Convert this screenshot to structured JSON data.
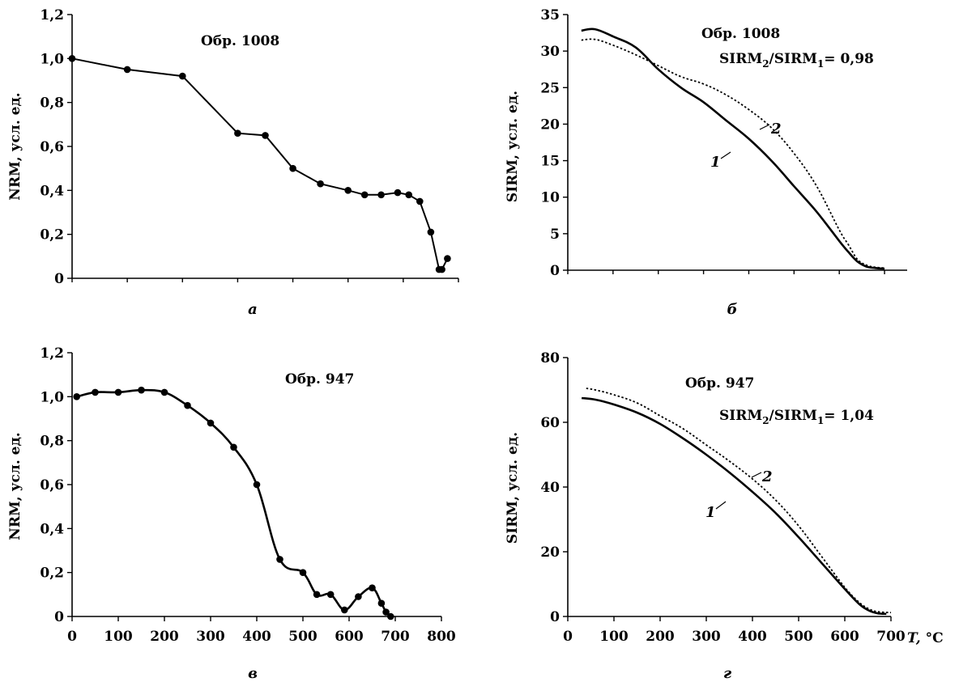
{
  "chart_data": [
    {
      "type": "line",
      "panel_letter": "а",
      "title": "Обр. 1008",
      "subtitle": "",
      "xlabel": "",
      "ylabel": "NRM, усл. ед.",
      "xlim": [
        0,
        700
      ],
      "ylim": [
        0,
        1.2
      ],
      "y_ticks": [
        "0",
        "0,2",
        "0,4",
        "0,6",
        "0,8",
        "1,0",
        "1,2"
      ],
      "x_ticks": [],
      "series": [
        {
          "style": "solid-markers",
          "x": [
            0,
            100,
            200,
            300,
            350,
            400,
            450,
            500,
            530,
            560,
            590,
            610,
            630,
            650,
            665,
            670,
            680
          ],
          "y": [
            1.0,
            0.95,
            0.92,
            0.66,
            0.65,
            0.5,
            0.43,
            0.4,
            0.38,
            0.38,
            0.39,
            0.38,
            0.35,
            0.21,
            0.04,
            0.04,
            0.09
          ]
        }
      ]
    },
    {
      "type": "line",
      "panel_letter": "б",
      "title": "Обр. 1008",
      "subtitle": "SIRM₂/SIRM₁= 0,98",
      "xlabel": "",
      "ylabel": "SIRM, усл. ед.",
      "xlim": [
        0,
        750
      ],
      "ylim": [
        0,
        35
      ],
      "y_ticks": [
        "0",
        "5",
        "10",
        "15",
        "20",
        "25",
        "30",
        "35"
      ],
      "x_ticks": [],
      "series": [
        {
          "name": "1",
          "style": "solid",
          "x": [
            30,
            60,
            100,
            150,
            200,
            250,
            300,
            350,
            400,
            450,
            500,
            550,
            600,
            620,
            640,
            660,
            680,
            700
          ],
          "y": [
            32.8,
            33.0,
            32.0,
            30.5,
            27.5,
            25.0,
            23.0,
            20.5,
            18.0,
            15.0,
            11.5,
            8.0,
            4.0,
            2.5,
            1.2,
            0.5,
            0.3,
            0.2
          ]
        },
        {
          "name": "2",
          "style": "dotted",
          "x": [
            30,
            60,
            100,
            150,
            200,
            250,
            300,
            350,
            400,
            450,
            500,
            550,
            600,
            620,
            640,
            660,
            680,
            700
          ],
          "y": [
            31.5,
            31.6,
            30.8,
            29.5,
            28.0,
            26.5,
            25.5,
            24.0,
            22.0,
            19.5,
            16.0,
            11.5,
            5.5,
            3.5,
            1.5,
            0.7,
            0.4,
            0.3
          ]
        }
      ],
      "curve_labels": [
        "1",
        "2"
      ]
    },
    {
      "type": "line",
      "panel_letter": "в",
      "title": "Обр. 947",
      "subtitle": "",
      "xlabel": "",
      "ylabel": "NRM, усл. ед.",
      "xlim": [
        0,
        800
      ],
      "ylim": [
        0,
        1.2
      ],
      "y_ticks": [
        "0",
        "0,2",
        "0,4",
        "0,6",
        "0,8",
        "1,0",
        "1,2"
      ],
      "x_ticks": [
        "0",
        "100",
        "200",
        "300",
        "400",
        "500",
        "600",
        "700",
        "800"
      ],
      "series": [
        {
          "style": "smooth-markers",
          "x": [
            10,
            50,
            100,
            150,
            200,
            250,
            300,
            350,
            400,
            450,
            500,
            530,
            560,
            590,
            620,
            650,
            670,
            680,
            690
          ],
          "y": [
            1.0,
            1.02,
            1.02,
            1.03,
            1.02,
            0.96,
            0.88,
            0.77,
            0.6,
            0.26,
            0.2,
            0.1,
            0.1,
            0.03,
            0.09,
            0.13,
            0.06,
            0.02,
            0.0
          ]
        }
      ]
    },
    {
      "type": "line",
      "panel_letter": "г",
      "title": "Обр. 947",
      "subtitle": "SIRM₂/SIRM₁= 1,04",
      "xlabel": "T, °C",
      "ylabel": "SIRM, усл. ед.",
      "xlim": [
        0,
        700
      ],
      "ylim": [
        0,
        80
      ],
      "y_ticks": [
        "0",
        "20",
        "40",
        "60",
        "80"
      ],
      "x_ticks": [
        "0",
        "100",
        "200",
        "300",
        "400",
        "500",
        "600",
        "700"
      ],
      "series": [
        {
          "name": "1",
          "style": "solid",
          "x": [
            30,
            60,
            100,
            150,
            200,
            250,
            300,
            350,
            400,
            450,
            500,
            550,
            600,
            630,
            650,
            670,
            690
          ],
          "y": [
            67.5,
            67.0,
            65.5,
            63.0,
            59.5,
            55.0,
            50.0,
            44.5,
            38.5,
            32.0,
            24.5,
            16.5,
            8.5,
            4.0,
            2.0,
            1.0,
            0.8
          ]
        },
        {
          "name": "2",
          "style": "dotted",
          "x": [
            40,
            60,
            100,
            150,
            200,
            250,
            300,
            350,
            400,
            450,
            500,
            550,
            600,
            630,
            650,
            670,
            700
          ],
          "y": [
            70.5,
            70.0,
            68.5,
            66.0,
            62.0,
            58.0,
            53.0,
            48.0,
            42.5,
            36.0,
            28.0,
            18.5,
            9.0,
            4.5,
            2.5,
            1.5,
            1.2
          ]
        }
      ],
      "curve_labels": [
        "1",
        "2"
      ]
    }
  ]
}
